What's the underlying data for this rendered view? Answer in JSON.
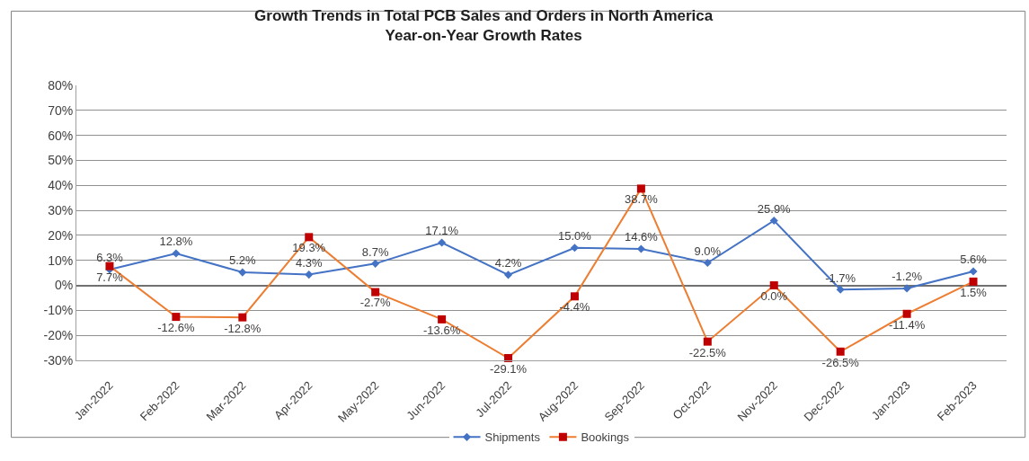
{
  "chart_data": {
    "type": "line",
    "title": "Growth Trends in Total PCB Sales and Orders in North America\nYear-on-Year Growth Rates",
    "categories": [
      "Jan-2022",
      "Feb-2022",
      "Mar-2022",
      "Apr-2022",
      "May-2022",
      "Jun-2022",
      "Jul-2022",
      "Aug-2022",
      "Sep-2022",
      "Oct-2022",
      "Nov-2022",
      "Dec-2022",
      "Jan-2023",
      "Feb-2023"
    ],
    "series": [
      {
        "name": "Shipments",
        "color": "#4472c4",
        "marker": "diamond",
        "values": [
          6.3,
          12.8,
          5.2,
          4.3,
          8.7,
          17.1,
          4.2,
          15.0,
          14.6,
          9.0,
          25.9,
          -1.7,
          -1.2,
          5.6
        ],
        "value_labels": [
          "6.3%",
          "12.8%",
          "5.2%",
          "4.3%",
          "8.7%",
          "17.1%",
          "4.2%",
          "15.0%",
          "14.6%",
          "9.0%",
          "25.9%",
          "-1.7%",
          "-1.2%",
          "5.6%"
        ]
      },
      {
        "name": "Bookings",
        "color": "#ed7d31",
        "colors": [
          "#c00000",
          "#c00000",
          "#c00000",
          "#c00000",
          "#c00000",
          "#c00000",
          "#c00000",
          "#c00000",
          "#c00000",
          "#c00000",
          "#c00000",
          "#c00000",
          "#c00000",
          "#c00000"
        ],
        "marker": "square",
        "values": [
          7.7,
          -12.6,
          -12.8,
          19.3,
          -2.7,
          -13.6,
          -29.1,
          -4.4,
          38.7,
          -22.5,
          0.0,
          -26.5,
          -11.4,
          1.5
        ],
        "value_labels": [
          "7.7%",
          "-12.6%",
          "-12.8%",
          "19.3%",
          "-2.7%",
          "-13.6%",
          "-29.1%",
          "-4.4%",
          "38.7%",
          "-22.5%",
          "0.0%",
          "-26.5%",
          "-11.4%",
          "1.5%"
        ]
      }
    ],
    "ylim": [
      -30,
      80
    ],
    "yticks": [
      {
        "value": -30,
        "label": "-30%"
      },
      {
        "value": -20,
        "label": "-20%"
      },
      {
        "value": -10,
        "label": "-10%"
      },
      {
        "value": 0,
        "label": "0%"
      },
      {
        "value": 10,
        "label": "10%"
      },
      {
        "value": 20,
        "label": "20%"
      },
      {
        "value": 30,
        "label": "30%"
      },
      {
        "value": 40,
        "label": "40%"
      },
      {
        "value": 50,
        "label": "50%"
      },
      {
        "value": 60,
        "label": "60%"
      },
      {
        "value": 70,
        "label": "70%"
      },
      {
        "value": 80,
        "label": "80%"
      }
    ],
    "grid": "y",
    "legend": "bottom",
    "line_style": "solid"
  }
}
